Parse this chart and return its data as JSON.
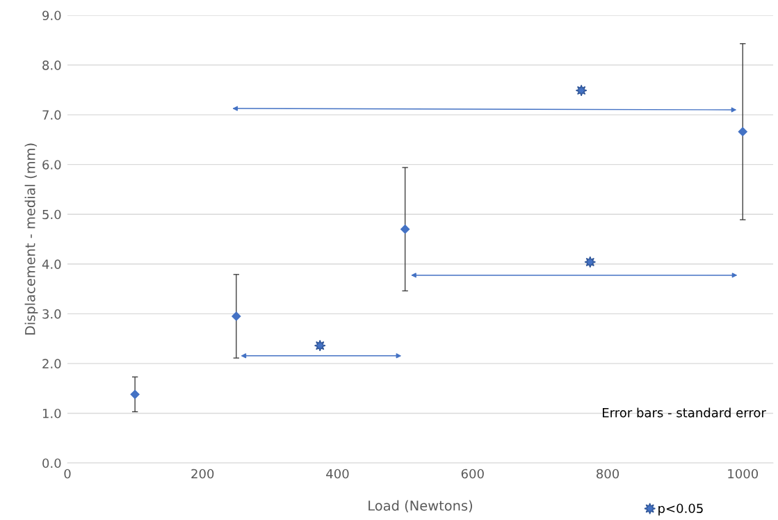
{
  "chart_data": {
    "type": "scatter",
    "xlabel": "Load (Newtons)",
    "ylabel": "Displacement - medial (mm)",
    "xlim": [
      0,
      1045
    ],
    "xticks": [
      0,
      200,
      400,
      600,
      800,
      1000
    ],
    "ylim": [
      0,
      9
    ],
    "yticks": [
      {
        "value": 0,
        "label": "0.0"
      },
      {
        "value": 1,
        "label": "1.0"
      },
      {
        "value": 2,
        "label": "2.0"
      },
      {
        "value": 3,
        "label": "3.0"
      },
      {
        "value": 4,
        "label": "4.0"
      },
      {
        "value": 5,
        "label": "5.0"
      },
      {
        "value": 6,
        "label": "6.0"
      },
      {
        "value": 7,
        "label": "7.0"
      },
      {
        "value": 8,
        "label": "8.0"
      },
      {
        "value": 9,
        "label": "9.0"
      }
    ],
    "grid": "y",
    "legend": "bottom",
    "series": [
      {
        "color": "#4472c4",
        "marker": "diamond",
        "x": [
          100,
          250,
          500,
          1000
        ],
        "values": [
          1.38,
          2.95,
          4.7,
          6.66
        ],
        "errors": [
          0.35,
          0.84,
          1.24,
          1.77
        ]
      },
      {
        "name": "p<0.05",
        "color": "#4472c4",
        "marker": "star",
        "x": [
          374,
          761,
          774
        ],
        "values": [
          2.36,
          7.49,
          4.04
        ]
      }
    ],
    "annotations": [
      "Error bars - standard error"
    ]
  }
}
